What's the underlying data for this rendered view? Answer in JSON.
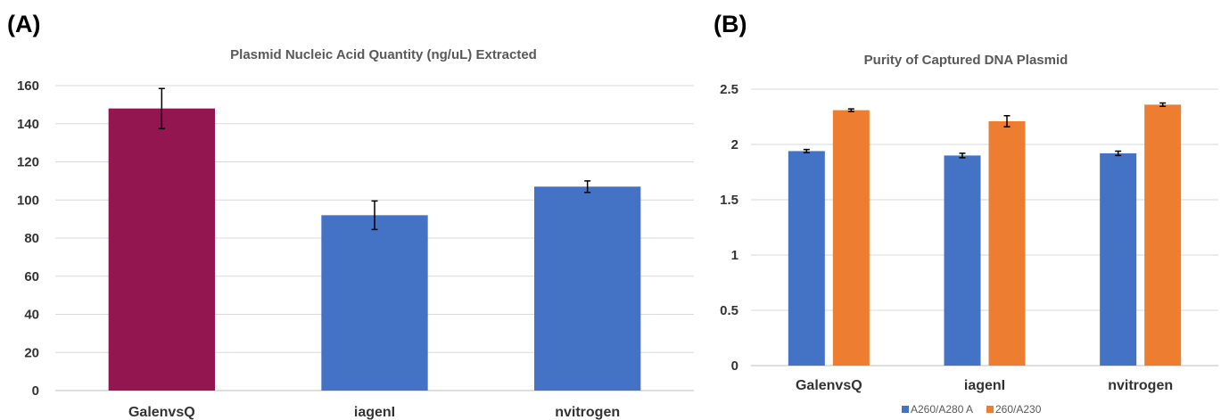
{
  "panels": {
    "a": {
      "label": "(A)"
    },
    "b": {
      "label": "(B)"
    }
  },
  "chart_data": [
    {
      "type": "bar",
      "title": "Plasmid Nucleic Acid Quantity (ng/uL) Extracted",
      "xlabel": "",
      "ylabel": "",
      "categories": [
        "GalenvsQ",
        "iagenI",
        "nvitrogen"
      ],
      "values": [
        148,
        92,
        107
      ],
      "errors": [
        10.5,
        7.5,
        3
      ],
      "colors": [
        "#941651",
        "#4472C4",
        "#4472C4"
      ],
      "ylim": [
        0,
        160
      ],
      "yticks": [
        0,
        20,
        40,
        60,
        80,
        100,
        120,
        140,
        160
      ],
      "ytick_labels": [
        "0",
        "20",
        "40",
        "60",
        "80",
        "100",
        "120",
        "140",
        "160"
      ],
      "grid": true,
      "legend": "none"
    },
    {
      "type": "bar",
      "title": "Purity of Captured DNA Plasmid",
      "xlabel": "",
      "ylabel": "",
      "categories": [
        "GalenvsQ",
        "iagenI",
        "nvitrogen"
      ],
      "series": [
        {
          "name": "A260/A280 A",
          "values": [
            1.94,
            1.9,
            1.92
          ],
          "errors": [
            0.015,
            0.02,
            0.02
          ],
          "color": "#4472C4"
        },
        {
          "name": "260/A230",
          "values": [
            2.31,
            2.21,
            2.36
          ],
          "errors": [
            0.012,
            0.05,
            0.015
          ],
          "color": "#ED7D31"
        }
      ],
      "ylim": [
        0,
        2.5
      ],
      "yticks": [
        0,
        0.5,
        1,
        1.5,
        2,
        2.5
      ],
      "ytick_labels": [
        "0",
        "0.5",
        "1",
        "1.5",
        "2",
        "2.5"
      ],
      "grid": true,
      "legend": "bottom"
    }
  ]
}
